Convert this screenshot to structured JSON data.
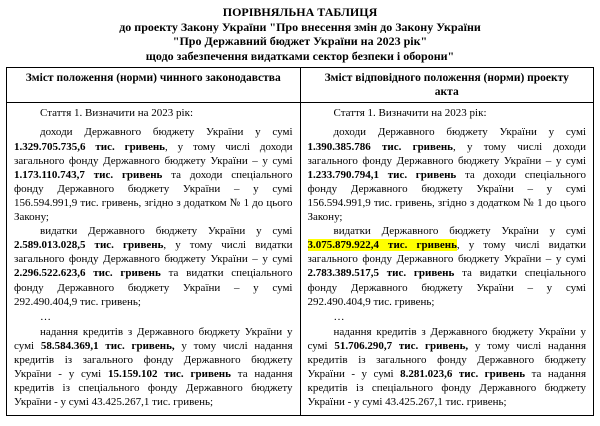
{
  "colors": {
    "background": "#ffffff",
    "text": "#000000",
    "border": "#000000",
    "highlight": "#ffff00"
  },
  "document": {
    "title_lines": [
      "ПОРІВНЯЛЬНА ТАБЛИЦЯ",
      "до проекту Закону України \"Про внесення змін до Закону України",
      "\"Про Державний бюджет України на 2023 рік\"",
      "щодо забезпечення видатками сектор безпеки і оборони\""
    ]
  },
  "table": {
    "columns": [
      {
        "id": "current-law",
        "header": "Зміст положення (норми) чинного законодавства",
        "article": "Стаття 1. Визначити на 2023 рік:",
        "ellipsis": "…",
        "paragraphs": [
          {
            "name": "revenues",
            "runs": [
              {
                "text": "доходи Державного бюджету України у сумі ",
                "bold": false,
                "highlight": false
              },
              {
                "text": "1.329.705.735,6 тис. гривень",
                "bold": true,
                "highlight": false
              },
              {
                "text": ", у тому числі доходи загального фонду Державного бюджету України – у сумі ",
                "bold": false,
                "highlight": false
              },
              {
                "text": "1.173.110.743,7 тис. гривень",
                "bold": true,
                "highlight": false
              },
              {
                "text": " та доходи спеціального фонду Державного бюджету України – у сумі 156.594.991,9 тис. гривень, згідно з додатком № 1 до цього Закону;",
                "bold": false,
                "highlight": false
              }
            ]
          },
          {
            "name": "expenditures",
            "runs": [
              {
                "text": "видатки Державного бюджету України у сумі ",
                "bold": false,
                "highlight": false
              },
              {
                "text": "2.589.013.028,5 тис. гривень",
                "bold": true,
                "highlight": false
              },
              {
                "text": ", у тому числі видатки загального фонду Державного бюджету України – у сумі ",
                "bold": false,
                "highlight": false
              },
              {
                "text": "2.296.522.623,6 тис. гривень",
                "bold": true,
                "highlight": false
              },
              {
                "text": " та видатки спеціального фонду Державного бюджету України – у сумі 292.490.404,9 тис. гривень;",
                "bold": false,
                "highlight": false
              }
            ]
          },
          {
            "name": "credits",
            "runs": [
              {
                "text": "надання кредитів з Державного бюджету України у сумі ",
                "bold": false,
                "highlight": false
              },
              {
                "text": "58.584.369,1 тис. гривень,",
                "bold": true,
                "highlight": false
              },
              {
                "text": " у тому числі надання кредитів із загального фонду Державного бюджету України - у сумі ",
                "bold": false,
                "highlight": false
              },
              {
                "text": "15.159.102 тис. гривень",
                "bold": true,
                "highlight": false
              },
              {
                "text": " та надання кредитів із спеціального фонду Державного бюджету України - у сумі 43.425.267,1 тис. гривень;",
                "bold": false,
                "highlight": false
              }
            ]
          }
        ]
      },
      {
        "id": "draft-act",
        "header": "Зміст відповідного положення (норми) проекту акта",
        "article": "Стаття 1. Визначити на 2023 рік:",
        "ellipsis": "…",
        "paragraphs": [
          {
            "name": "revenues",
            "runs": [
              {
                "text": "доходи Державного бюджету України у сумі ",
                "bold": false,
                "highlight": false
              },
              {
                "text": "1.390.385.786 тис. гривень",
                "bold": true,
                "highlight": false
              },
              {
                "text": ", у тому числі доходи загального фонду Державного бюджету України – у сумі ",
                "bold": false,
                "highlight": false
              },
              {
                "text": "1.233.790.794,1 тис. гривень",
                "bold": true,
                "highlight": false
              },
              {
                "text": " та доходи спеціального фонду Державного бюджету України – у сумі 156.594.991,9 тис. гривень, згідно з додатком № 1 до цього Закону;",
                "bold": false,
                "highlight": false
              }
            ]
          },
          {
            "name": "expenditures",
            "runs": [
              {
                "text": "видатки Державного бюджету України у сумі ",
                "bold": false,
                "highlight": false
              },
              {
                "text": "3.075.879.922,4 тис. гривень",
                "bold": true,
                "highlight": true
              },
              {
                "text": ", у тому числі видатки загального фонду Державного бюджету України – у сумі ",
                "bold": false,
                "highlight": false
              },
              {
                "text": "2.783.389.517,5 тис. гривень",
                "bold": true,
                "highlight": false
              },
              {
                "text": " та видатки спеціального фонду Державного бюджету України – у сумі 292.490.404,9 тис. гривень;",
                "bold": false,
                "highlight": false
              }
            ]
          },
          {
            "name": "credits",
            "runs": [
              {
                "text": "надання кредитів з Державного бюджету України у сумі ",
                "bold": false,
                "highlight": false
              },
              {
                "text": "51.706.290,7 тис. гривень,",
                "bold": true,
                "highlight": false
              },
              {
                "text": " у тому числі надання кредитів із загального фонду Державного бюджету України - у сумі ",
                "bold": false,
                "highlight": false
              },
              {
                "text": "8.281.023,6 тис. гривень",
                "bold": true,
                "highlight": false
              },
              {
                "text": " та надання кредитів із спеціального фонду Державного бюджету України - у сумі 43.425.267,1 тис. гривень;",
                "bold": false,
                "highlight": false
              }
            ]
          }
        ]
      }
    ]
  }
}
